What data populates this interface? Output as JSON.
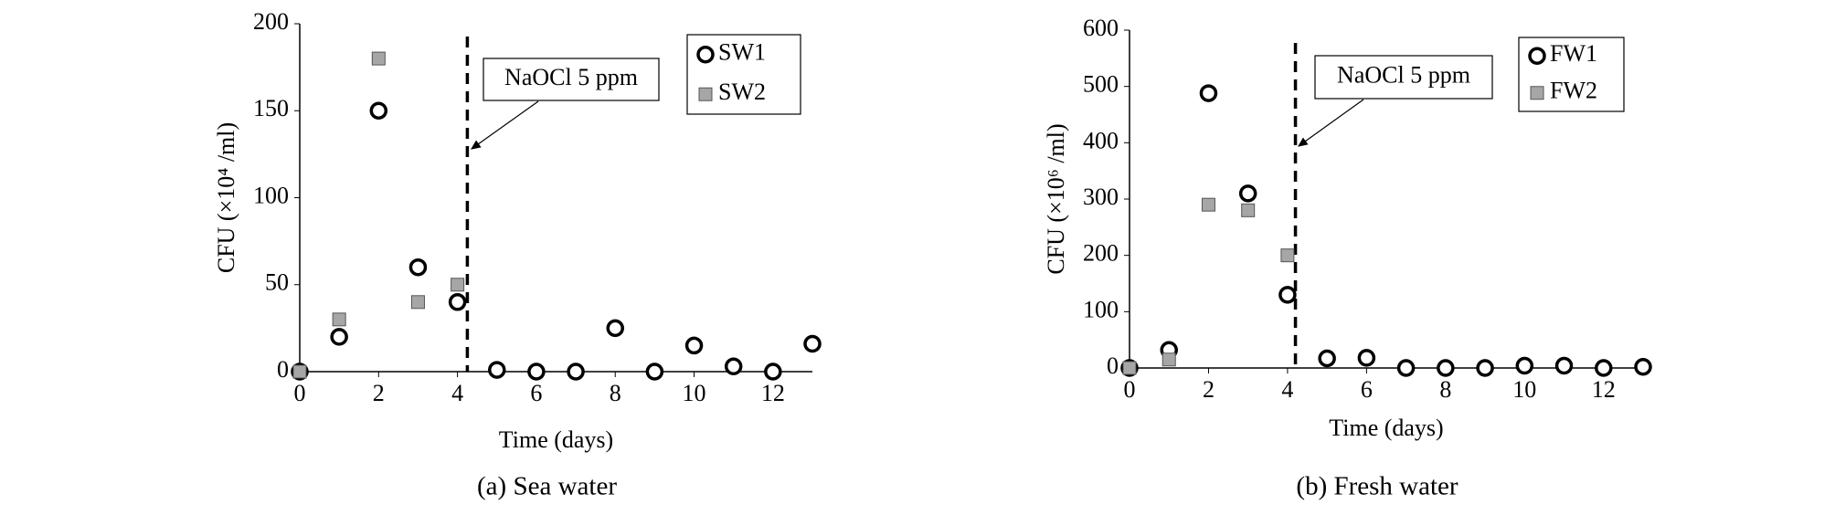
{
  "chart_data": [
    {
      "type": "scatter",
      "caption": "(a) Sea water",
      "x_label": "Time (days)",
      "y_label": "CFU (×10⁴ /ml)",
      "xlim": [
        0,
        13
      ],
      "ylim": [
        0,
        200
      ],
      "xticks": [
        0,
        2,
        4,
        6,
        8,
        10,
        12
      ],
      "yticks": [
        0,
        50,
        100,
        150,
        200
      ],
      "vline": 4.25,
      "annotation": "NaOCl 5 ppm",
      "series": [
        {
          "name": "SW1",
          "marker": "circle",
          "color": "#000000",
          "x": [
            0,
            1,
            2,
            3,
            4,
            5,
            6,
            7,
            8,
            9,
            10,
            11,
            12,
            13
          ],
          "values": [
            0,
            20,
            150,
            60,
            40,
            1,
            0,
            0,
            25,
            0,
            15,
            3,
            0,
            16
          ]
        },
        {
          "name": "SW2",
          "marker": "square",
          "color": "#a6a6a6",
          "x": [
            0,
            1,
            2,
            3,
            4
          ],
          "values": [
            0,
            30,
            180,
            40,
            50
          ]
        }
      ]
    },
    {
      "type": "scatter",
      "caption": "(b) Fresh water",
      "x_label": "Time (days)",
      "y_label": "CFU (×10⁶ /ml)",
      "xlim": [
        0,
        13
      ],
      "ylim": [
        0,
        600
      ],
      "xticks": [
        0,
        2,
        4,
        6,
        8,
        10,
        12
      ],
      "yticks": [
        0,
        100,
        200,
        300,
        400,
        500,
        600
      ],
      "vline": 4.2,
      "annotation": "NaOCl 5 ppm",
      "series": [
        {
          "name": "FW1",
          "marker": "circle",
          "color": "#000000",
          "x": [
            0,
            1,
            2,
            3,
            4,
            5,
            6,
            7,
            8,
            9,
            10,
            11,
            12,
            13
          ],
          "values": [
            0,
            32,
            488,
            310,
            130,
            17,
            18,
            0,
            0,
            0,
            4,
            4,
            0,
            2
          ]
        },
        {
          "name": "FW2",
          "marker": "square",
          "color": "#a6a6a6",
          "x": [
            0,
            1,
            2,
            3,
            4
          ],
          "values": [
            0,
            15,
            290,
            280,
            200
          ]
        }
      ]
    }
  ]
}
